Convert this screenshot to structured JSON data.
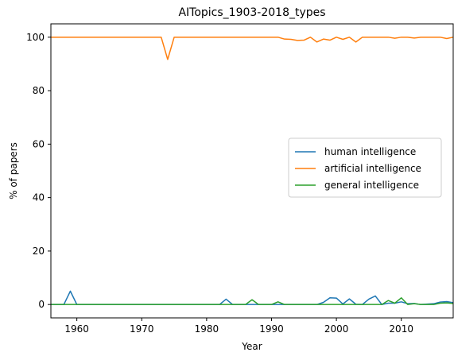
{
  "chart_data": {
    "type": "line",
    "title": "AITopics_1903-2018_types",
    "xlabel": "Year",
    "ylabel": "% of papers",
    "xlim": [
      1956,
      2018
    ],
    "ylim": [
      -5,
      105
    ],
    "xticks": [
      1960,
      1970,
      1980,
      1990,
      2000,
      2010
    ],
    "yticks": [
      0,
      20,
      40,
      60,
      80,
      100
    ],
    "grid": false,
    "legend": "center-right",
    "series": [
      {
        "name": "human intelligence",
        "color": "#1f77b4",
        "points": [
          [
            1956,
            0
          ],
          [
            1958,
            0
          ],
          [
            1959,
            5
          ],
          [
            1960,
            0
          ],
          [
            1982,
            0
          ],
          [
            1983,
            2
          ],
          [
            1984,
            0
          ],
          [
            1996,
            0
          ],
          [
            1997,
            0
          ],
          [
            1998,
            0.8
          ],
          [
            1999,
            2.5
          ],
          [
            2000,
            2.4
          ],
          [
            2001,
            0.2
          ],
          [
            2002,
            2.1
          ],
          [
            2003,
            0.1
          ],
          [
            2004,
            0
          ],
          [
            2005,
            2
          ],
          [
            2006,
            3.2
          ],
          [
            2007,
            0
          ],
          [
            2008,
            0.5
          ],
          [
            2009,
            0.5
          ],
          [
            2010,
            1
          ],
          [
            2011,
            0.3
          ],
          [
            2012,
            0.4
          ],
          [
            2013,
            0
          ],
          [
            2015,
            0.3
          ],
          [
            2016,
            0.9
          ],
          [
            2017,
            1.1
          ],
          [
            2018,
            0.7
          ]
        ]
      },
      {
        "name": "artificial intelligence",
        "color": "#ff7f0e",
        "points": [
          [
            1956,
            100
          ],
          [
            1973,
            100
          ],
          [
            1974,
            91.7
          ],
          [
            1975,
            100
          ],
          [
            1991,
            100
          ],
          [
            1992,
            99.3
          ],
          [
            1993,
            99.2
          ],
          [
            1994,
            98.8
          ],
          [
            1995,
            98.9
          ],
          [
            1996,
            100
          ],
          [
            1997,
            98.2
          ],
          [
            1998,
            99.3
          ],
          [
            1999,
            98.9
          ],
          [
            2000,
            100
          ],
          [
            2001,
            99.2
          ],
          [
            2002,
            100
          ],
          [
            2003,
            98.2
          ],
          [
            2004,
            100
          ],
          [
            2008,
            100
          ],
          [
            2009,
            99.6
          ],
          [
            2010,
            100
          ],
          [
            2011,
            100
          ],
          [
            2012,
            99.7
          ],
          [
            2013,
            100
          ],
          [
            2016,
            100
          ],
          [
            2017,
            99.5
          ],
          [
            2018,
            100
          ]
        ]
      },
      {
        "name": "general intelligence",
        "color": "#2ca02c",
        "points": [
          [
            1956,
            0
          ],
          [
            1986,
            0
          ],
          [
            1987,
            1.8
          ],
          [
            1988,
            0
          ],
          [
            1990,
            0
          ],
          [
            1991,
            1
          ],
          [
            1992,
            0
          ],
          [
            2007,
            0
          ],
          [
            2008,
            1.5
          ],
          [
            2009,
            0.5
          ],
          [
            2010,
            2.5
          ],
          [
            2011,
            0
          ],
          [
            2012,
            0.3
          ],
          [
            2013,
            0
          ],
          [
            2015,
            0
          ],
          [
            2016,
            0.5
          ],
          [
            2017,
            0.6
          ],
          [
            2018,
            0.4
          ]
        ]
      }
    ]
  }
}
